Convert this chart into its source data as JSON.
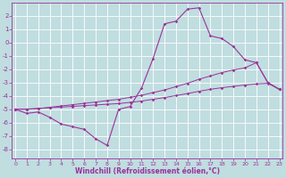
{
  "background_color": "#c0dde0",
  "grid_color": "#ffffff",
  "line_color": "#993399",
  "xlim": [
    -0.3,
    23.3
  ],
  "ylim": [
    -8.7,
    3.0
  ],
  "xticks": [
    0,
    1,
    2,
    3,
    4,
    5,
    6,
    7,
    8,
    9,
    10,
    11,
    12,
    13,
    14,
    15,
    16,
    17,
    18,
    19,
    20,
    21,
    22,
    23
  ],
  "yticks": [
    -8,
    -7,
    -6,
    -5,
    -4,
    -3,
    -2,
    -1,
    0,
    1,
    2
  ],
  "line1_x": [
    0,
    1,
    2,
    3,
    4,
    5,
    6,
    7,
    8,
    9,
    10,
    11,
    12,
    13,
    14,
    15,
    16,
    17,
    18,
    19,
    20,
    21,
    22,
    23
  ],
  "line1_y": [
    -5.0,
    -5.3,
    -5.2,
    -5.6,
    -6.1,
    -6.3,
    -6.5,
    -7.2,
    -7.7,
    -5.0,
    -4.8,
    -3.4,
    -1.2,
    1.4,
    1.6,
    2.5,
    2.6,
    0.5,
    0.3,
    -0.3,
    -1.3,
    -1.5,
    -3.0,
    -3.5
  ],
  "line2_x": [
    0,
    1,
    2,
    3,
    4,
    5,
    6,
    7,
    8,
    9,
    10,
    11,
    12,
    13,
    14,
    15,
    16,
    17,
    18,
    19,
    20,
    21,
    22,
    23
  ],
  "line2_y": [
    -5.0,
    -5.0,
    -4.95,
    -4.85,
    -4.75,
    -4.65,
    -4.55,
    -4.45,
    -4.35,
    -4.25,
    -4.1,
    -3.95,
    -3.75,
    -3.55,
    -3.3,
    -3.05,
    -2.75,
    -2.5,
    -2.25,
    -2.05,
    -1.9,
    -1.5,
    -3.0,
    -3.5
  ],
  "line3_x": [
    0,
    1,
    2,
    3,
    4,
    5,
    6,
    7,
    8,
    9,
    10,
    11,
    12,
    13,
    14,
    15,
    16,
    17,
    18,
    19,
    20,
    21,
    22,
    23
  ],
  "line3_y": [
    -5.0,
    -4.98,
    -4.93,
    -4.88,
    -4.83,
    -4.78,
    -4.72,
    -4.67,
    -4.62,
    -4.57,
    -4.48,
    -4.38,
    -4.25,
    -4.12,
    -3.97,
    -3.82,
    -3.65,
    -3.5,
    -3.38,
    -3.28,
    -3.18,
    -3.1,
    -3.05,
    -3.5
  ],
  "xlabel": "Windchill (Refroidissement éolien,°C)",
  "tick_fontsize": 4.5,
  "label_fontsize": 5.5
}
